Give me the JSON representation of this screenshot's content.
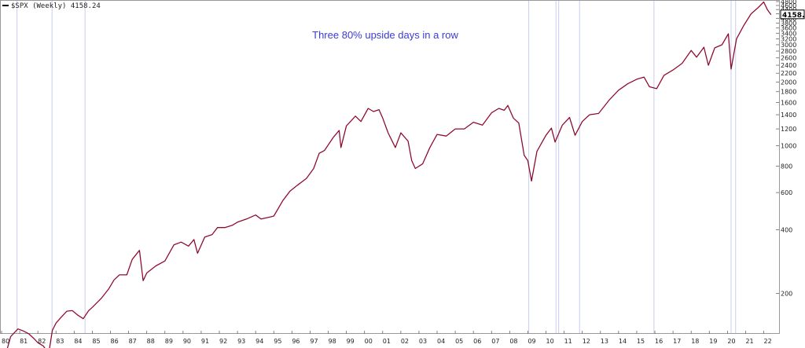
{
  "chart_data": {
    "type": "line",
    "legend": {
      "series_label": "$SPX (Weekly) 4158.24",
      "placement": "top-left"
    },
    "annotation": "Three 80% upside days in a row",
    "last_value": 4158.24,
    "last_value_label": "4158.24",
    "y_scale": "log",
    "ylim": [
      130,
      4800
    ],
    "xlim": [
      1980.0,
      2022.8
    ],
    "y_ticks": [
      200,
      400,
      600,
      800,
      1000,
      1200,
      1400,
      1600,
      1800,
      2000,
      2200,
      2400,
      2600,
      2800,
      3000,
      3200,
      3400,
      3600,
      3800,
      4000,
      4200,
      4400,
      4600,
      4800
    ],
    "y_tick_labels": [
      "200",
      "400",
      "600",
      "800",
      "1000",
      "1200",
      "1400",
      "1600",
      "1800",
      "2000",
      "2200",
      "2400",
      "2600",
      "2800",
      "3000",
      "3200",
      "3400",
      "3600",
      "3800",
      "4000",
      "4200",
      "4400",
      "4600",
      "4800"
    ],
    "x_ticks": [
      1980,
      1981,
      1982,
      1983,
      1984,
      1985,
      1986,
      1987,
      1988,
      1989,
      1990,
      1991,
      1992,
      1993,
      1994,
      1995,
      1996,
      1997,
      1998,
      1999,
      2000,
      2001,
      2002,
      2003,
      2004,
      2005,
      2006,
      2007,
      2008,
      2009,
      2010,
      2011,
      2012,
      2013,
      2014,
      2015,
      2016,
      2017,
      2018,
      2019,
      2020,
      2021,
      2022
    ],
    "x_tick_labels": [
      "80",
      "81",
      "82",
      "83",
      "84",
      "85",
      "86",
      "87",
      "88",
      "89",
      "90",
      "91",
      "92",
      "93",
      "94",
      "95",
      "96",
      "97",
      "98",
      "99",
      "00",
      "01",
      "02",
      "03",
      "04",
      "05",
      "06",
      "07",
      "08",
      "09",
      "10",
      "11",
      "12",
      "13",
      "14",
      "15",
      "16",
      "17",
      "18",
      "19",
      "20",
      "21",
      "22"
    ],
    "signal_dates": [
      1980.85,
      1982.78,
      1984.6,
      2009.05,
      2010.55,
      2010.7,
      2011.85,
      2015.95,
      2020.2,
      2020.45
    ],
    "series": [
      {
        "color": "#b0103c",
        "points": [
          [
            1980.0,
            110
          ],
          [
            1980.2,
            101
          ],
          [
            1980.5,
            125
          ],
          [
            1980.9,
            136
          ],
          [
            1981.2,
            133
          ],
          [
            1981.5,
            129
          ],
          [
            1981.8,
            122
          ],
          [
            1982.0,
            117
          ],
          [
            1982.3,
            113
          ],
          [
            1982.6,
            104
          ],
          [
            1982.8,
            134
          ],
          [
            1983.0,
            145
          ],
          [
            1983.3,
            155
          ],
          [
            1983.6,
            165
          ],
          [
            1983.9,
            166
          ],
          [
            1984.2,
            158
          ],
          [
            1984.5,
            152
          ],
          [
            1984.8,
            166
          ],
          [
            1985.0,
            172
          ],
          [
            1985.5,
            190
          ],
          [
            1985.9,
            210
          ],
          [
            1986.2,
            232
          ],
          [
            1986.5,
            245
          ],
          [
            1986.9,
            245
          ],
          [
            1987.2,
            290
          ],
          [
            1987.6,
            320
          ],
          [
            1987.8,
            230
          ],
          [
            1988.0,
            250
          ],
          [
            1988.5,
            270
          ],
          [
            1989.0,
            285
          ],
          [
            1989.5,
            340
          ],
          [
            1989.9,
            350
          ],
          [
            1990.3,
            335
          ],
          [
            1990.6,
            360
          ],
          [
            1990.8,
            310
          ],
          [
            1991.2,
            370
          ],
          [
            1991.6,
            380
          ],
          [
            1991.9,
            410
          ],
          [
            1992.3,
            410
          ],
          [
            1992.7,
            420
          ],
          [
            1993.0,
            435
          ],
          [
            1993.5,
            450
          ],
          [
            1994.0,
            470
          ],
          [
            1994.3,
            450
          ],
          [
            1994.8,
            460
          ],
          [
            1995.0,
            465
          ],
          [
            1995.5,
            550
          ],
          [
            1995.9,
            610
          ],
          [
            1996.3,
            650
          ],
          [
            1996.8,
            700
          ],
          [
            1997.2,
            780
          ],
          [
            1997.5,
            920
          ],
          [
            1997.8,
            950
          ],
          [
            1998.3,
            1100
          ],
          [
            1998.6,
            1180
          ],
          [
            1998.7,
            980
          ],
          [
            1999.0,
            1240
          ],
          [
            1999.5,
            1380
          ],
          [
            1999.8,
            1300
          ],
          [
            2000.2,
            1500
          ],
          [
            2000.5,
            1450
          ],
          [
            2000.8,
            1480
          ],
          [
            2001.0,
            1350
          ],
          [
            2001.3,
            1150
          ],
          [
            2001.7,
            980
          ],
          [
            2002.0,
            1150
          ],
          [
            2002.4,
            1050
          ],
          [
            2002.6,
            850
          ],
          [
            2002.8,
            780
          ],
          [
            2003.2,
            820
          ],
          [
            2003.6,
            980
          ],
          [
            2004.0,
            1130
          ],
          [
            2004.5,
            1110
          ],
          [
            2005.0,
            1200
          ],
          [
            2005.5,
            1200
          ],
          [
            2006.0,
            1290
          ],
          [
            2006.5,
            1250
          ],
          [
            2007.0,
            1430
          ],
          [
            2007.4,
            1500
          ],
          [
            2007.7,
            1470
          ],
          [
            2007.9,
            1550
          ],
          [
            2008.2,
            1350
          ],
          [
            2008.5,
            1280
          ],
          [
            2008.8,
            900
          ],
          [
            2009.0,
            850
          ],
          [
            2009.2,
            680
          ],
          [
            2009.5,
            940
          ],
          [
            2010.0,
            1120
          ],
          [
            2010.3,
            1210
          ],
          [
            2010.5,
            1040
          ],
          [
            2010.9,
            1250
          ],
          [
            2011.3,
            1360
          ],
          [
            2011.6,
            1120
          ],
          [
            2012.0,
            1300
          ],
          [
            2012.4,
            1400
          ],
          [
            2012.9,
            1420
          ],
          [
            2013.5,
            1650
          ],
          [
            2014.0,
            1830
          ],
          [
            2014.5,
            1960
          ],
          [
            2015.0,
            2060
          ],
          [
            2015.4,
            2110
          ],
          [
            2015.7,
            1900
          ],
          [
            2016.1,
            1860
          ],
          [
            2016.5,
            2150
          ],
          [
            2017.0,
            2280
          ],
          [
            2017.5,
            2450
          ],
          [
            2018.0,
            2820
          ],
          [
            2018.3,
            2620
          ],
          [
            2018.7,
            2920
          ],
          [
            2018.95,
            2400
          ],
          [
            2019.3,
            2900
          ],
          [
            2019.7,
            3000
          ],
          [
            2020.05,
            3380
          ],
          [
            2020.2,
            2300
          ],
          [
            2020.5,
            3200
          ],
          [
            2020.9,
            3700
          ],
          [
            2021.3,
            4200
          ],
          [
            2021.7,
            4500
          ],
          [
            2022.0,
            4780
          ],
          [
            2022.2,
            4400
          ],
          [
            2022.4,
            4158.24
          ]
        ]
      }
    ]
  }
}
